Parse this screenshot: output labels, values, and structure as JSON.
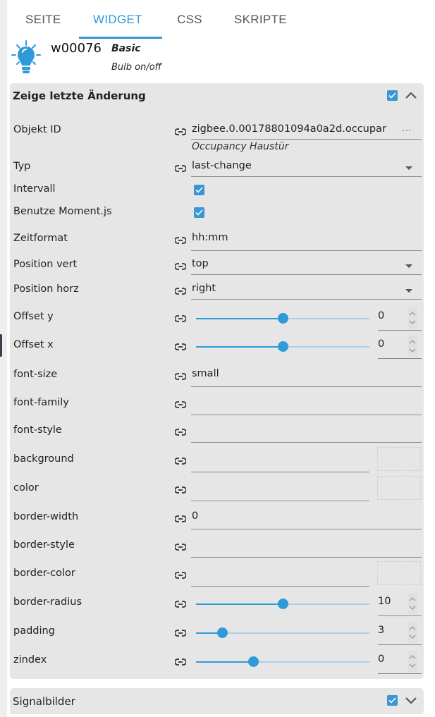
{
  "tabs": [
    {
      "label": "SEITE"
    },
    {
      "label": "WIDGET",
      "active": true
    },
    {
      "label": "CSS"
    },
    {
      "label": "SKRIPTE"
    }
  ],
  "widget": {
    "id": "w00076",
    "set": "Basic",
    "name": "Bulb on/off",
    "icon": "lightbulb-icon"
  },
  "colors": {
    "accent": "#2e9ad7",
    "panel": "#e6e6e6"
  },
  "group1": {
    "title": "Zeige letzte Änderung",
    "checked": true,
    "expanded": true,
    "rows": [
      {
        "label": "Objekt ID",
        "type": "oid",
        "value": "zigbee.0.00178801094a0a2d.occupar",
        "more": "...",
        "sub": "Occupancy Haustür"
      },
      {
        "label": "Typ",
        "type": "select",
        "value": "last-change"
      },
      {
        "label": "Intervall",
        "type": "checkbox",
        "checked": true
      },
      {
        "label": "Benutze Moment.js",
        "type": "checkbox",
        "checked": true
      },
      {
        "label": "Zeitformat",
        "type": "text",
        "value": "hh:mm"
      },
      {
        "label": "Position vert",
        "type": "select",
        "value": "top"
      },
      {
        "label": "Position horz",
        "type": "select",
        "value": "right"
      },
      {
        "label": "Offset y",
        "type": "slider",
        "value": "0",
        "level": 0.5
      },
      {
        "label": "Offset x",
        "type": "slider",
        "value": "0",
        "level": 0.5
      },
      {
        "label": "font-size",
        "type": "text",
        "value": "small"
      },
      {
        "label": "font-family",
        "type": "text",
        "value": ""
      },
      {
        "label": "font-style",
        "type": "text",
        "value": ""
      },
      {
        "label": "background",
        "type": "color",
        "value": ""
      },
      {
        "label": "color",
        "type": "color",
        "value": ""
      },
      {
        "label": "border-width",
        "type": "text",
        "value": "0"
      },
      {
        "label": "border-style",
        "type": "text",
        "value": ""
      },
      {
        "label": "border-color",
        "type": "color",
        "value": ""
      },
      {
        "label": "border-radius",
        "type": "slider",
        "value": "10",
        "level": 0.5
      },
      {
        "label": "padding",
        "type": "slider",
        "value": "3",
        "level": 0.15
      },
      {
        "label": "zindex",
        "type": "slider",
        "value": "0",
        "level": 0.33
      }
    ]
  },
  "group2": {
    "title": "Signalbilder",
    "checked": true,
    "expanded": false
  }
}
